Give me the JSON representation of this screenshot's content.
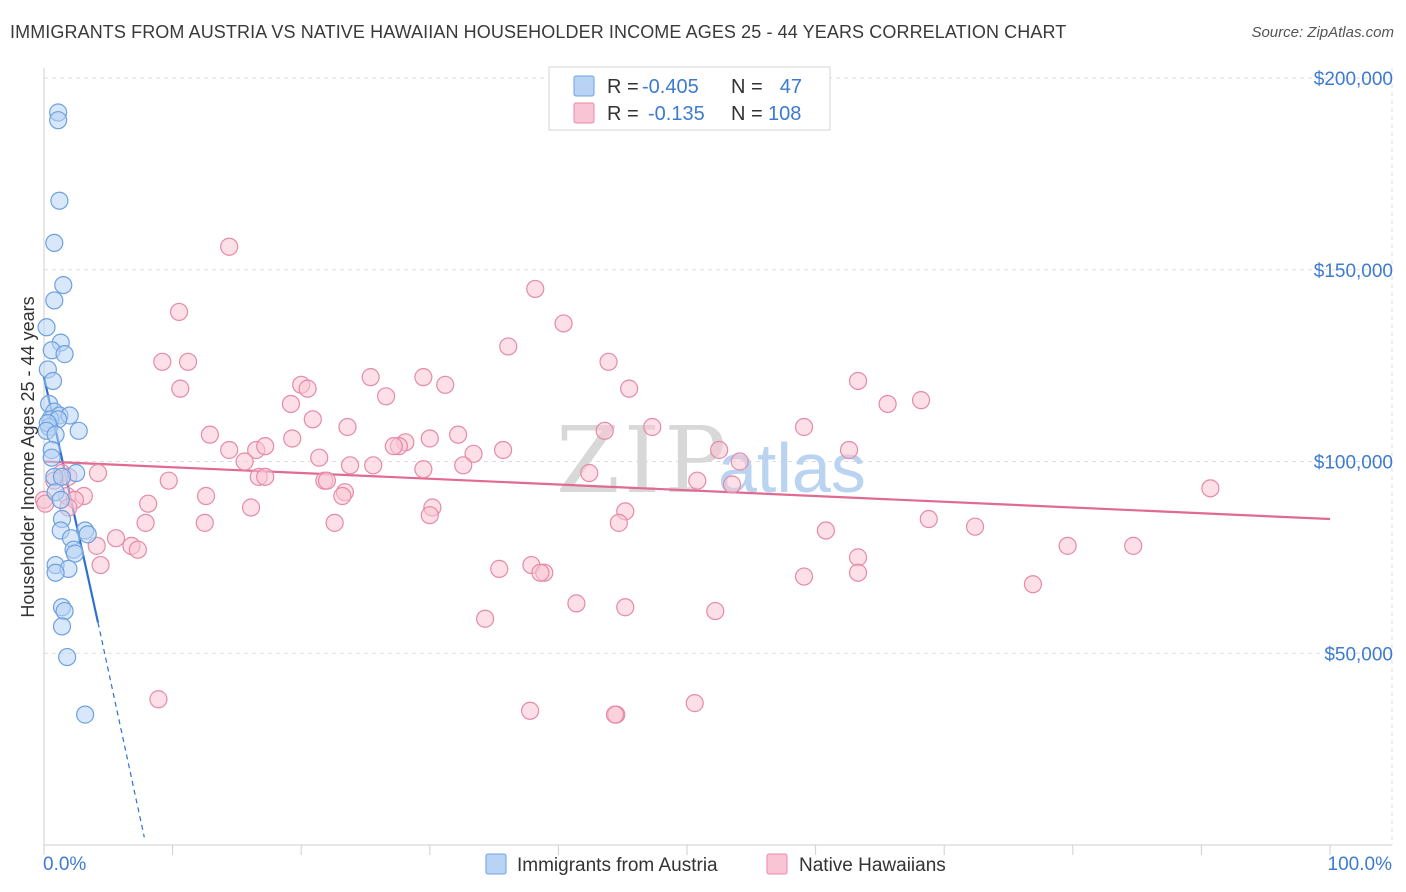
{
  "title": "IMMIGRANTS FROM AUSTRIA VS NATIVE HAWAIIAN HOUSEHOLDER INCOME AGES 25 - 44 YEARS CORRELATION CHART",
  "source": "Source: ZipAtlas.com",
  "watermark": {
    "part1": "ZIP",
    "part2": "atlas"
  },
  "legend_top": [
    {
      "r_label": "R =",
      "r_value": "-0.405",
      "n_label": "N =",
      "n_value": "47",
      "color": "#b8d3f4",
      "stroke": "#6ea1df"
    },
    {
      "r_label": "R =",
      "r_value": "-0.135",
      "n_label": "N =",
      "n_value": "108",
      "color": "#f9c4d3",
      "stroke": "#e68aa8"
    }
  ],
  "legend_bottom": [
    {
      "label": "Immigrants from Austria",
      "color": "#b8d3f4",
      "stroke": "#6ea1df"
    },
    {
      "label": "Native Hawaiians",
      "color": "#f9c4d3",
      "stroke": "#e68aa8"
    }
  ],
  "chart_data": {
    "type": "scatter",
    "title": "IMMIGRANTS FROM AUSTRIA VS NATIVE HAWAIIAN HOUSEHOLDER INCOME AGES 25 - 44 YEARS CORRELATION CHART",
    "xlabel": "",
    "ylabel": "Householder Income Ages 25 - 44 years",
    "xlim": [
      0,
      100
    ],
    "ylim": [
      0,
      200000
    ],
    "x_tick_labels": [
      "0.0%",
      "100.0%"
    ],
    "y_ticks": [
      {
        "value": 50000,
        "label": "$50,000"
      },
      {
        "value": 100000,
        "label": "$100,000"
      },
      {
        "value": 150000,
        "label": "$150,000"
      },
      {
        "value": 200000,
        "label": "$200,000"
      }
    ],
    "series": [
      {
        "name": "Immigrants from Austria",
        "color": "#6ea1df",
        "fill": "#b8d3f4",
        "trend": {
          "x1": 0.0,
          "y1": 122000,
          "x2": 4.2,
          "y2": 58000,
          "x_dash_end": 7.8,
          "y_dash_end": 2000,
          "color": "#2f6fd1"
        },
        "points": [
          [
            1.1,
            191000
          ],
          [
            1.1,
            189000
          ],
          [
            1.2,
            168000
          ],
          [
            0.8,
            157000
          ],
          [
            1.5,
            146000
          ],
          [
            0.8,
            142000
          ],
          [
            0.2,
            135000
          ],
          [
            1.3,
            131000
          ],
          [
            0.6,
            129000
          ],
          [
            1.6,
            128000
          ],
          [
            0.3,
            124000
          ],
          [
            0.7,
            121000
          ],
          [
            0.4,
            115000
          ],
          [
            0.8,
            113000
          ],
          [
            1.2,
            112000
          ],
          [
            2.0,
            112000
          ],
          [
            0.5,
            111000
          ],
          [
            1.1,
            111000
          ],
          [
            0.4,
            109000
          ],
          [
            0.3,
            110000
          ],
          [
            0.2,
            108000
          ],
          [
            2.7,
            108000
          ],
          [
            0.9,
            107000
          ],
          [
            0.6,
            103000
          ],
          [
            0.6,
            101000
          ],
          [
            2.5,
            97000
          ],
          [
            0.8,
            96000
          ],
          [
            1.4,
            96000
          ],
          [
            0.9,
            92000
          ],
          [
            1.3,
            90000
          ],
          [
            1.4,
            85000
          ],
          [
            1.3,
            82000
          ],
          [
            3.2,
            82000
          ],
          [
            3.4,
            81000
          ],
          [
            2.1,
            80000
          ],
          [
            2.3,
            77000
          ],
          [
            2.4,
            76000
          ],
          [
            0.9,
            73000
          ],
          [
            1.9,
            72000
          ],
          [
            0.9,
            71000
          ],
          [
            1.4,
            62000
          ],
          [
            1.6,
            61000
          ],
          [
            1.4,
            57000
          ],
          [
            1.8,
            49000
          ],
          [
            3.2,
            34000
          ]
        ]
      },
      {
        "name": "Native Hawaiians",
        "color": "#e68aa8",
        "fill": "#f9c4d3",
        "trend": {
          "x1": 0.0,
          "y1": 100000,
          "x2": 100.0,
          "y2": 85000,
          "color": "#e06a92"
        },
        "points": [
          [
            14.4,
            156000
          ],
          [
            38.2,
            145000
          ],
          [
            10.5,
            139000
          ],
          [
            40.4,
            136000
          ],
          [
            36.1,
            130000
          ],
          [
            11.2,
            126000
          ],
          [
            9.2,
            126000
          ],
          [
            43.9,
            126000
          ],
          [
            25.4,
            122000
          ],
          [
            29.5,
            122000
          ],
          [
            31.2,
            120000
          ],
          [
            20.0,
            120000
          ],
          [
            10.6,
            119000
          ],
          [
            20.5,
            119000
          ],
          [
            45.5,
            119000
          ],
          [
            26.6,
            117000
          ],
          [
            63.3,
            121000
          ],
          [
            68.2,
            116000
          ],
          [
            19.2,
            115000
          ],
          [
            65.6,
            115000
          ],
          [
            20.9,
            111000
          ],
          [
            23.6,
            109000
          ],
          [
            47.3,
            109000
          ],
          [
            59.1,
            109000
          ],
          [
            43.6,
            108000
          ],
          [
            12.9,
            107000
          ],
          [
            32.2,
            107000
          ],
          [
            19.3,
            106000
          ],
          [
            30.0,
            106000
          ],
          [
            28.1,
            105000
          ],
          [
            27.6,
            104000
          ],
          [
            27.2,
            104000
          ],
          [
            16.5,
            103000
          ],
          [
            17.2,
            104000
          ],
          [
            14.4,
            103000
          ],
          [
            52.5,
            103000
          ],
          [
            35.7,
            103000
          ],
          [
            62.6,
            103000
          ],
          [
            33.4,
            102000
          ],
          [
            21.4,
            101000
          ],
          [
            15.6,
            100000
          ],
          [
            54.1,
            100000
          ],
          [
            25.6,
            99000
          ],
          [
            23.8,
            99000
          ],
          [
            32.6,
            99000
          ],
          [
            29.5,
            98000
          ],
          [
            42.4,
            97000
          ],
          [
            4.2,
            97000
          ],
          [
            1.4,
            97000
          ],
          [
            1.9,
            96000
          ],
          [
            16.7,
            96000
          ],
          [
            17.2,
            96000
          ],
          [
            9.7,
            95000
          ],
          [
            21.8,
            95000
          ],
          [
            22.0,
            95000
          ],
          [
            50.8,
            95000
          ],
          [
            53.5,
            94000
          ],
          [
            0.8,
            95000
          ],
          [
            90.7,
            93000
          ],
          [
            1.8,
            91000
          ],
          [
            23.4,
            92000
          ],
          [
            23.2,
            91000
          ],
          [
            12.6,
            91000
          ],
          [
            3.1,
            91000
          ],
          [
            0.0,
            90000
          ],
          [
            2.4,
            90000
          ],
          [
            1.9,
            88000
          ],
          [
            8.1,
            89000
          ],
          [
            16.1,
            88000
          ],
          [
            30.2,
            88000
          ],
          [
            30.0,
            86000
          ],
          [
            45.2,
            87000
          ],
          [
            68.8,
            85000
          ],
          [
            44.7,
            84000
          ],
          [
            7.9,
            84000
          ],
          [
            12.5,
            84000
          ],
          [
            22.6,
            84000
          ],
          [
            72.4,
            83000
          ],
          [
            60.8,
            82000
          ],
          [
            5.6,
            80000
          ],
          [
            6.8,
            78000
          ],
          [
            7.3,
            77000
          ],
          [
            4.1,
            78000
          ],
          [
            79.6,
            78000
          ],
          [
            84.7,
            78000
          ],
          [
            63.3,
            75000
          ],
          [
            37.9,
            73000
          ],
          [
            35.4,
            72000
          ],
          [
            4.4,
            73000
          ],
          [
            38.9,
            71000
          ],
          [
            38.6,
            71000
          ],
          [
            63.3,
            71000
          ],
          [
            59.1,
            70000
          ],
          [
            76.9,
            68000
          ],
          [
            41.4,
            63000
          ],
          [
            45.2,
            62000
          ],
          [
            52.2,
            61000
          ],
          [
            34.3,
            59000
          ],
          [
            8.9,
            38000
          ],
          [
            50.6,
            37000
          ],
          [
            37.8,
            35000
          ],
          [
            44.5,
            34000
          ],
          [
            44.4,
            34000
          ],
          [
            0.1,
            89000
          ]
        ]
      }
    ],
    "grid": true,
    "legend_position": "top-center"
  }
}
